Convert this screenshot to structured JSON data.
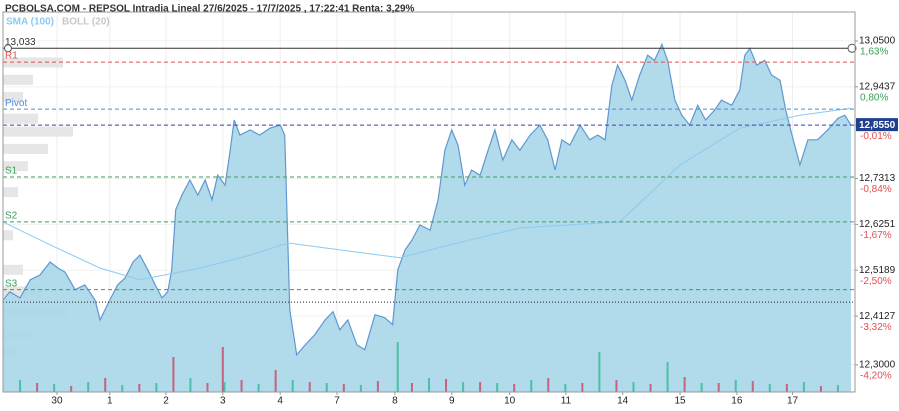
{
  "chart_data": {
    "type": "area",
    "title": "PCBOLSA.COM - REPSOL Intradia Lineal 27/6/2025 - 17/7/2025 , 17:22:41 Renta: 3,29%",
    "indicators": [
      {
        "name": "SMA (100)",
        "color": "#8ccaf0"
      },
      {
        "name": "BOLL (20)",
        "color": "#c8c8c8"
      }
    ],
    "x": [
      0,
      0.12,
      0.3,
      0.48,
      0.65,
      0.83,
      0.97,
      1.09,
      1.27,
      1.44,
      1.62,
      1.71,
      1.88,
      2.02,
      2.15,
      2.29,
      2.41,
      2.55,
      2.68,
      2.8,
      2.9,
      2.97,
      3.04,
      3.15,
      3.29,
      3.43,
      3.56,
      3.68,
      3.78,
      3.91,
      4.0,
      4.07,
      4.17,
      4.35,
      4.52,
      4.7,
      4.88,
      4.96,
      5.05,
      5.17,
      5.32,
      5.49,
      5.67,
      5.81,
      5.93,
      6.07,
      6.23,
      6.37,
      6.55,
      6.72,
      6.86,
      6.95,
      7.08,
      7.2,
      7.34,
      7.52,
      7.66,
      7.78,
      7.9,
      8.01,
      8.13,
      8.25,
      8.4,
      8.54,
      8.66,
      8.8,
      8.96,
      9.1,
      9.28,
      9.45,
      9.59,
      9.72,
      9.84,
      9.98,
      10.16,
      10.33,
      10.47,
      10.6,
      10.72,
      10.82,
      10.95,
      11.07,
      11.21,
      11.35,
      11.47,
      11.6,
      11.7,
      11.83,
      11.95,
      12.09,
      12.23,
      12.37,
      12.53,
      12.65,
      12.83,
      12.97,
      13.06,
      13.15,
      13.27,
      13.41,
      13.53,
      13.68,
      13.78,
      13.89,
      14.03,
      14.17,
      14.34,
      14.52,
      14.7,
      14.82,
      14.93
    ],
    "series": [
      {
        "name": "REPSOL",
        "color": "#5f98cf",
        "fill": "#a9d6e8",
        "values": [
          12.45,
          12.469,
          12.455,
          12.497,
          12.508,
          12.538,
          12.524,
          12.515,
          12.474,
          12.485,
          12.45,
          12.404,
          12.45,
          12.485,
          12.501,
          12.538,
          12.554,
          12.52,
          12.485,
          12.455,
          12.469,
          12.52,
          12.659,
          12.693,
          12.728,
          12.693,
          12.728,
          12.682,
          12.739,
          12.716,
          12.797,
          12.867,
          12.832,
          12.844,
          12.832,
          12.848,
          12.855,
          12.832,
          12.427,
          12.323,
          12.346,
          12.37,
          12.404,
          12.423,
          12.381,
          12.404,
          12.346,
          12.335,
          12.416,
          12.409,
          12.393,
          12.52,
          12.566,
          12.589,
          12.624,
          12.612,
          12.682,
          12.797,
          12.844,
          12.809,
          12.716,
          12.751,
          12.739,
          12.797,
          12.844,
          12.774,
          12.821,
          12.797,
          12.832,
          12.855,
          12.821,
          12.751,
          12.821,
          12.809,
          12.855,
          12.821,
          12.832,
          12.821,
          12.947,
          12.994,
          12.959,
          12.913,
          12.971,
          13.017,
          13.005,
          13.042,
          13.005,
          12.913,
          12.878,
          12.855,
          12.901,
          12.867,
          12.89,
          12.913,
          12.901,
          12.936,
          13.017,
          13.033,
          12.994,
          13.005,
          12.971,
          12.959,
          12.89,
          12.832,
          12.763,
          12.821,
          12.821,
          12.844,
          12.871,
          12.878,
          12.855
        ]
      }
    ],
    "sma": {
      "x": [
        0,
        0.83,
        1.71,
        2.41,
        3.47,
        4.35,
        5.02,
        5.93,
        6.99,
        7.87,
        9.1,
        10.86,
        11.92,
        12.97,
        14.03,
        14.93
      ],
      "values": [
        12.631,
        12.578,
        12.524,
        12.497,
        12.524,
        12.554,
        12.582,
        12.566,
        12.548,
        12.578,
        12.617,
        12.631,
        12.763,
        12.848,
        12.878,
        12.894
      ]
    },
    "volume": {
      "vlim": [
        0,
        100
      ],
      "series": [
        {
          "color": "#49c2a4",
          "x": [
            0.3,
            0.9,
            1.5,
            2.1,
            2.7,
            3.3,
            3.9,
            4.5,
            5.1,
            5.7,
            6.3,
            6.95,
            7.5,
            8.1,
            8.7,
            9.3,
            9.9,
            10.5,
            11.1,
            11.7,
            12.3,
            12.9,
            13.5,
            14.1,
            14.7
          ],
          "values": [
            12,
            8,
            10,
            7,
            9,
            14,
            10,
            8,
            12,
            9,
            7,
            50,
            14,
            10,
            9,
            12,
            8,
            40,
            10,
            30,
            9,
            12,
            8,
            10,
            7
          ]
        },
        {
          "color": "#c2657e",
          "x": [
            0.6,
            1.2,
            1.8,
            2.4,
            3.0,
            3.6,
            3.87,
            4.2,
            4.8,
            5.4,
            6.0,
            6.6,
            7.2,
            7.8,
            8.4,
            9.0,
            9.6,
            10.2,
            10.8,
            11.4,
            12.0,
            12.6,
            13.2,
            13.8,
            14.4
          ],
          "values": [
            9,
            6,
            14,
            8,
            35,
            9,
            45,
            12,
            22,
            10,
            8,
            11,
            9,
            13,
            10,
            8,
            14,
            9,
            12,
            8,
            15,
            9,
            11,
            8,
            6
          ]
        }
      ]
    },
    "volume_profile": {
      "color": "#e6e6e6",
      "plim": [
        0,
        100
      ],
      "prices": [
        13.0,
        12.96,
        12.92,
        12.87,
        12.84,
        12.8,
        12.76,
        12.7,
        12.6,
        12.52,
        12.47,
        12.42,
        12.37,
        12.33
      ],
      "values": [
        60,
        30,
        20,
        35,
        70,
        45,
        25,
        15,
        10,
        20,
        40,
        65,
        30,
        15
      ]
    },
    "levels": [
      {
        "name": "13,033",
        "value": 13.033,
        "color": "#333333",
        "style": "solid"
      },
      {
        "name": "R1",
        "value": 13.001,
        "color": "#e05050",
        "style": "dashed"
      },
      {
        "name": "Pivot",
        "value": 12.892,
        "color": "#4a8ae0",
        "style": "dashed"
      },
      {
        "name": "S1",
        "value": 12.735,
        "color": "#3aa05a",
        "style": "dashed"
      },
      {
        "name": "S2",
        "value": 12.631,
        "color": "#3aa05a",
        "style": "dashed"
      },
      {
        "name": "S3",
        "value": 12.474,
        "color": "#3aa05a",
        "style": "dashed"
      }
    ],
    "reference_line": 12.445,
    "current_price": 12.855,
    "xlim": [
      0,
      15
    ],
    "ylim": [
      12.237,
      13.117
    ],
    "xticks": [
      {
        "value": 0.95,
        "label": "30"
      },
      {
        "value": 1.88,
        "label": "1"
      },
      {
        "value": 2.87,
        "label": "2"
      },
      {
        "value": 3.87,
        "label": "3"
      },
      {
        "value": 4.88,
        "label": "4"
      },
      {
        "value": 5.88,
        "label": "7"
      },
      {
        "value": 6.9,
        "label": "8"
      },
      {
        "value": 7.9,
        "label": "9"
      },
      {
        "value": 8.92,
        "label": "10"
      },
      {
        "value": 9.91,
        "label": "11"
      },
      {
        "value": 10.91,
        "label": "14"
      },
      {
        "value": 11.92,
        "label": "15"
      },
      {
        "value": 12.92,
        "label": "16"
      },
      {
        "value": 13.9,
        "label": "17"
      }
    ],
    "yticks": [
      {
        "value": 13.05,
        "label": "13,0500"
      },
      {
        "value": 12.9437,
        "label": "12,9437"
      },
      {
        "value": 12.855,
        "label": "12,8550"
      },
      {
        "value": 12.7313,
        "label": "12,7313"
      },
      {
        "value": 12.6251,
        "label": "12,6251"
      },
      {
        "value": 12.5189,
        "label": "12,5189"
      },
      {
        "value": 12.4127,
        "label": "12,4127"
      },
      {
        "value": 12.3,
        "label": "12,3000"
      }
    ],
    "ytick_pct": [
      {
        "value": 1.63,
        "label": "1,63%"
      },
      {
        "value": 0.8,
        "label": "0,80%"
      },
      {
        "value": -0.01,
        "label": "-0,01%"
      },
      {
        "value": -0.84,
        "label": "-0,84%"
      },
      {
        "value": -1.67,
        "label": "-1,67%"
      },
      {
        "value": -2.5,
        "label": "-2,50%"
      },
      {
        "value": -3.32,
        "label": "-3,32%"
      },
      {
        "value": -4.2,
        "label": "-4,20%"
      }
    ],
    "grid": true
  }
}
